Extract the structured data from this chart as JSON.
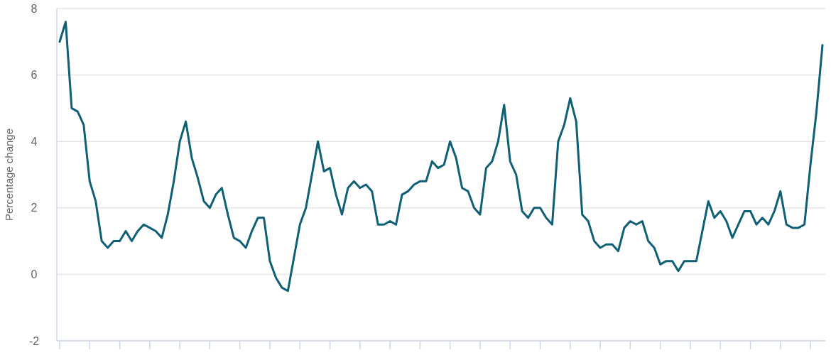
{
  "chart_data": {
    "type": "line",
    "ylabel": "Percentage change",
    "categories": [
      null,
      null,
      null,
      null,
      null,
      null,
      null,
      null,
      null,
      null,
      null,
      null,
      null,
      null,
      null,
      null,
      null,
      null,
      null,
      null,
      null,
      null,
      null,
      null,
      null,
      null,
      null,
      null,
      null,
      null,
      null,
      null,
      null,
      null,
      null,
      null,
      null,
      null,
      null,
      null,
      null,
      null,
      null,
      null,
      null,
      null,
      null,
      null,
      null,
      null,
      null,
      null,
      null,
      null,
      null,
      null,
      null,
      null,
      null,
      null,
      null,
      null,
      null,
      null,
      null,
      null,
      null,
      null,
      null,
      null,
      null,
      null,
      null,
      null,
      null,
      null,
      null,
      null,
      null,
      null,
      null,
      null,
      null,
      null,
      null,
      null,
      null,
      null,
      null,
      null,
      null,
      null,
      null,
      null,
      null,
      null,
      null,
      null,
      null,
      null,
      null,
      null,
      null,
      null,
      null,
      null,
      null,
      null,
      null,
      null,
      null,
      null,
      null,
      null,
      null,
      null,
      null,
      null,
      null,
      null,
      null,
      null,
      null,
      null,
      null,
      null,
      null,
      null
    ],
    "series": [
      {
        "color": "#0f5f75",
        "values": [
          7.0,
          7.6,
          5.0,
          4.9,
          4.5,
          2.8,
          2.2,
          1.0,
          0.8,
          1.0,
          1.0,
          1.3,
          1.0,
          1.3,
          1.5,
          1.4,
          1.3,
          1.1,
          1.8,
          2.8,
          4.0,
          4.6,
          3.5,
          2.9,
          2.2,
          2.0,
          2.4,
          2.6,
          1.8,
          1.1,
          1.0,
          0.8,
          1.3,
          1.7,
          1.7,
          0.4,
          -0.1,
          -0.4,
          -0.5,
          0.5,
          1.5,
          2.0,
          3.0,
          4.0,
          3.1,
          3.2,
          2.4,
          1.8,
          2.6,
          2.8,
          2.6,
          2.7,
          2.5,
          1.5,
          1.5,
          1.6,
          1.5,
          2.4,
          2.5,
          2.7,
          2.8,
          2.8,
          3.4,
          3.2,
          3.3,
          4.0,
          3.5,
          2.6,
          2.5,
          2.0,
          1.8,
          3.2,
          3.4,
          4.0,
          5.1,
          3.4,
          3.0,
          1.9,
          1.7,
          2.0,
          2.0,
          1.7,
          1.5,
          4.0,
          4.5,
          5.3,
          4.6,
          1.8,
          1.6,
          1.0,
          0.8,
          0.9,
          0.9,
          0.7,
          1.4,
          1.6,
          1.5,
          1.6,
          1.0,
          0.8,
          0.3,
          0.4,
          0.4,
          0.1,
          0.4,
          0.4,
          0.4,
          1.3,
          2.2,
          1.7,
          1.9,
          1.6,
          1.1,
          1.5,
          1.9,
          1.9,
          1.5,
          1.7,
          1.5,
          1.9,
          2.5,
          1.5,
          1.4,
          1.4,
          1.5,
          3.3,
          4.9,
          6.9
        ]
      }
    ],
    "ylim": [
      -2,
      8
    ],
    "yticks": [
      -2,
      0,
      2,
      4,
      6,
      8
    ],
    "grid": "y"
  }
}
